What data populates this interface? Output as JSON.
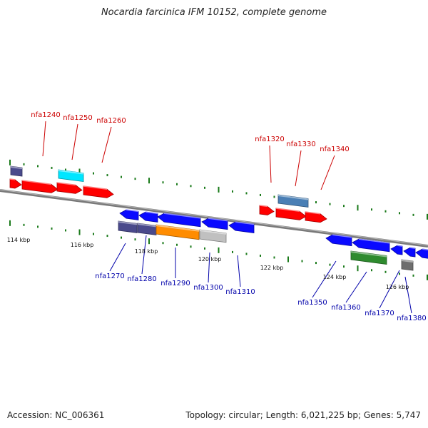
{
  "title": "Nocardia farcinica IFM 10152, complete genome",
  "footer": {
    "accession": "Accession: NC_006361",
    "summary": "Topology: circular; Length: 6,021,225 bp; Genes: 5,747"
  },
  "colors": {
    "forward_label": "#cc0000",
    "reverse_label": "#0000aa",
    "tick": "#1a7a1a",
    "backbone": "#808080"
  },
  "scale_labels": [
    {
      "kbp": 114,
      "text": "114 kbp"
    },
    {
      "kbp": 116,
      "text": "116 kbp"
    },
    {
      "kbp": 118,
      "text": "118 kbp"
    },
    {
      "kbp": 120,
      "text": "120 kbp"
    },
    {
      "kbp": 122,
      "text": "122 kbp"
    },
    {
      "kbp": 124,
      "text": "124 kbp"
    },
    {
      "kbp": 126,
      "text": "126 kbp"
    }
  ],
  "forward_genes": [
    {
      "label": "nfa1240",
      "color": "#ff0000"
    },
    {
      "label": "nfa1250",
      "color": "#ff0000"
    },
    {
      "label": "nfa1260",
      "color": "#ff0000"
    },
    {
      "label": "nfa1320",
      "color": "#ff0000"
    },
    {
      "label": "nfa1330",
      "color": "#ff0000"
    },
    {
      "label": "nfa1340",
      "color": "#ff0000"
    }
  ],
  "reverse_genes": [
    {
      "label": "nfa1270"
    },
    {
      "label": "nfa1280"
    },
    {
      "label": "nfa1290"
    },
    {
      "label": "nfa1300"
    },
    {
      "label": "nfa1310"
    },
    {
      "label": "nfa1350"
    },
    {
      "label": "nfa1360"
    },
    {
      "label": "nfa1370"
    },
    {
      "label": "nfa1380"
    }
  ]
}
